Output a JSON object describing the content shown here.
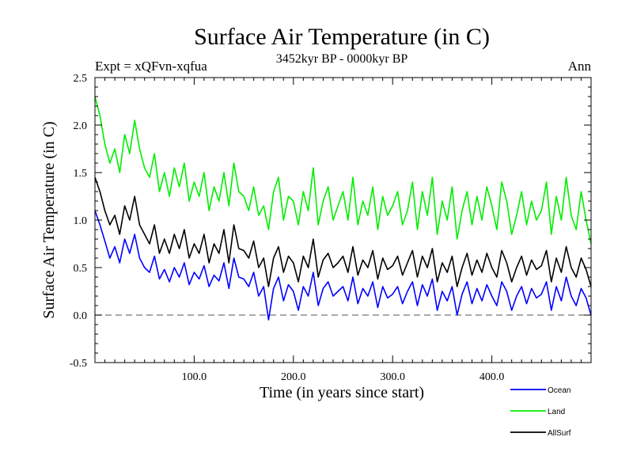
{
  "chart_data": {
    "type": "line",
    "title": "Surface Air Temperature (in C)",
    "subtitle": "3452kyr BP - 0000kyr BP",
    "left_label": "Expt = xQFvn-xqfua",
    "right_label": "Ann",
    "xlabel": "Time (in years since start)",
    "ylabel": "Surface Air Temperature (in C)",
    "xlim": [
      0,
      500
    ],
    "ylim": [
      -0.5,
      2.5
    ],
    "x_ticks": [
      {
        "value": 100,
        "label": "100.0"
      },
      {
        "value": 200,
        "label": "200.0"
      },
      {
        "value": 300,
        "label": "300.0"
      },
      {
        "value": 400,
        "label": "400.0"
      }
    ],
    "y_ticks": [
      {
        "value": -0.5,
        "label": "-0.5"
      },
      {
        "value": 0.0,
        "label": "0.0"
      },
      {
        "value": 0.5,
        "label": "0.5"
      },
      {
        "value": 1.0,
        "label": "1.0"
      },
      {
        "value": 1.5,
        "label": "1.5"
      },
      {
        "value": 2.0,
        "label": "2.0"
      },
      {
        "value": 2.5,
        "label": "2.5"
      }
    ],
    "reference_line": {
      "y": 0.0,
      "style": "dashed",
      "color": "#777777"
    },
    "legend_position": "bottom-right",
    "x": [
      0,
      5,
      10,
      15,
      20,
      25,
      30,
      35,
      40,
      45,
      50,
      55,
      60,
      65,
      70,
      75,
      80,
      85,
      90,
      95,
      100,
      105,
      110,
      115,
      120,
      125,
      130,
      135,
      140,
      145,
      150,
      155,
      160,
      165,
      170,
      175,
      180,
      185,
      190,
      195,
      200,
      205,
      210,
      215,
      220,
      225,
      230,
      235,
      240,
      245,
      250,
      255,
      260,
      265,
      270,
      275,
      280,
      285,
      290,
      295,
      300,
      305,
      310,
      315,
      320,
      325,
      330,
      335,
      340,
      345,
      350,
      355,
      360,
      365,
      370,
      375,
      380,
      385,
      390,
      395,
      400,
      405,
      410,
      415,
      420,
      425,
      430,
      435,
      440,
      445,
      450,
      455,
      460,
      465,
      470,
      475,
      480,
      485,
      490,
      495,
      500
    ],
    "series": [
      {
        "name": "Ocean",
        "color": "#0000ff",
        "values": [
          1.1,
          0.95,
          0.78,
          0.6,
          0.72,
          0.55,
          0.8,
          0.65,
          0.85,
          0.6,
          0.5,
          0.45,
          0.62,
          0.38,
          0.48,
          0.35,
          0.5,
          0.4,
          0.55,
          0.32,
          0.45,
          0.38,
          0.52,
          0.3,
          0.42,
          0.36,
          0.55,
          0.28,
          0.6,
          0.4,
          0.38,
          0.3,
          0.45,
          0.2,
          0.3,
          -0.05,
          0.28,
          0.4,
          0.15,
          0.32,
          0.25,
          0.05,
          0.3,
          0.2,
          0.45,
          0.1,
          0.28,
          0.35,
          0.2,
          0.25,
          0.3,
          0.15,
          0.4,
          0.12,
          0.28,
          0.2,
          0.35,
          0.08,
          0.3,
          0.18,
          0.22,
          0.3,
          0.12,
          0.25,
          0.35,
          0.1,
          0.32,
          0.2,
          0.38,
          0.05,
          0.25,
          0.15,
          0.3,
          0.0,
          0.22,
          0.35,
          0.12,
          0.28,
          0.15,
          0.32,
          0.2,
          0.1,
          0.35,
          0.25,
          0.05,
          0.2,
          0.3,
          0.12,
          0.28,
          0.18,
          0.22,
          0.35,
          0.05,
          0.3,
          0.15,
          0.4,
          0.2,
          0.1,
          0.28,
          0.18,
          0.0
        ]
      },
      {
        "name": "Land",
        "color": "#00ee00",
        "values": [
          2.3,
          2.1,
          1.8,
          1.6,
          1.75,
          1.5,
          1.9,
          1.7,
          2.05,
          1.75,
          1.55,
          1.45,
          1.7,
          1.3,
          1.5,
          1.25,
          1.55,
          1.35,
          1.6,
          1.2,
          1.4,
          1.25,
          1.5,
          1.1,
          1.35,
          1.2,
          1.5,
          1.15,
          1.6,
          1.3,
          1.25,
          1.1,
          1.35,
          1.05,
          1.15,
          0.9,
          1.3,
          1.45,
          1.0,
          1.25,
          1.2,
          0.95,
          1.3,
          1.1,
          1.55,
          0.95,
          1.2,
          1.35,
          1.0,
          1.15,
          1.3,
          1.0,
          1.45,
          0.95,
          1.2,
          1.05,
          1.35,
          0.9,
          1.25,
          1.05,
          1.15,
          1.3,
          0.95,
          1.1,
          1.4,
          0.9,
          1.3,
          1.05,
          1.45,
          0.85,
          1.2,
          1.0,
          1.35,
          0.8,
          1.1,
          1.3,
          0.95,
          1.25,
          1.0,
          1.35,
          1.15,
          0.9,
          1.4,
          1.2,
          0.85,
          1.05,
          1.3,
          0.95,
          1.2,
          1.0,
          1.1,
          1.4,
          0.85,
          1.25,
          1.0,
          1.45,
          1.05,
          0.9,
          1.3,
          1.0,
          0.75
        ]
      },
      {
        "name": "AllSurf",
        "color": "#000000",
        "values": [
          1.45,
          1.3,
          1.1,
          0.95,
          1.05,
          0.85,
          1.15,
          1.0,
          1.25,
          0.95,
          0.85,
          0.75,
          0.95,
          0.65,
          0.8,
          0.65,
          0.85,
          0.7,
          0.9,
          0.6,
          0.75,
          0.65,
          0.85,
          0.55,
          0.75,
          0.65,
          0.9,
          0.55,
          0.95,
          0.7,
          0.68,
          0.6,
          0.78,
          0.5,
          0.6,
          0.3,
          0.6,
          0.72,
          0.45,
          0.62,
          0.55,
          0.35,
          0.62,
          0.5,
          0.8,
          0.4,
          0.58,
          0.65,
          0.5,
          0.55,
          0.62,
          0.45,
          0.72,
          0.42,
          0.58,
          0.5,
          0.68,
          0.38,
          0.6,
          0.48,
          0.52,
          0.62,
          0.42,
          0.55,
          0.68,
          0.4,
          0.62,
          0.5,
          0.7,
          0.35,
          0.55,
          0.45,
          0.62,
          0.3,
          0.5,
          0.65,
          0.42,
          0.58,
          0.45,
          0.65,
          0.5,
          0.4,
          0.68,
          0.55,
          0.35,
          0.5,
          0.62,
          0.42,
          0.58,
          0.48,
          0.52,
          0.68,
          0.35,
          0.6,
          0.45,
          0.72,
          0.5,
          0.4,
          0.6,
          0.48,
          0.3
        ]
      }
    ]
  }
}
